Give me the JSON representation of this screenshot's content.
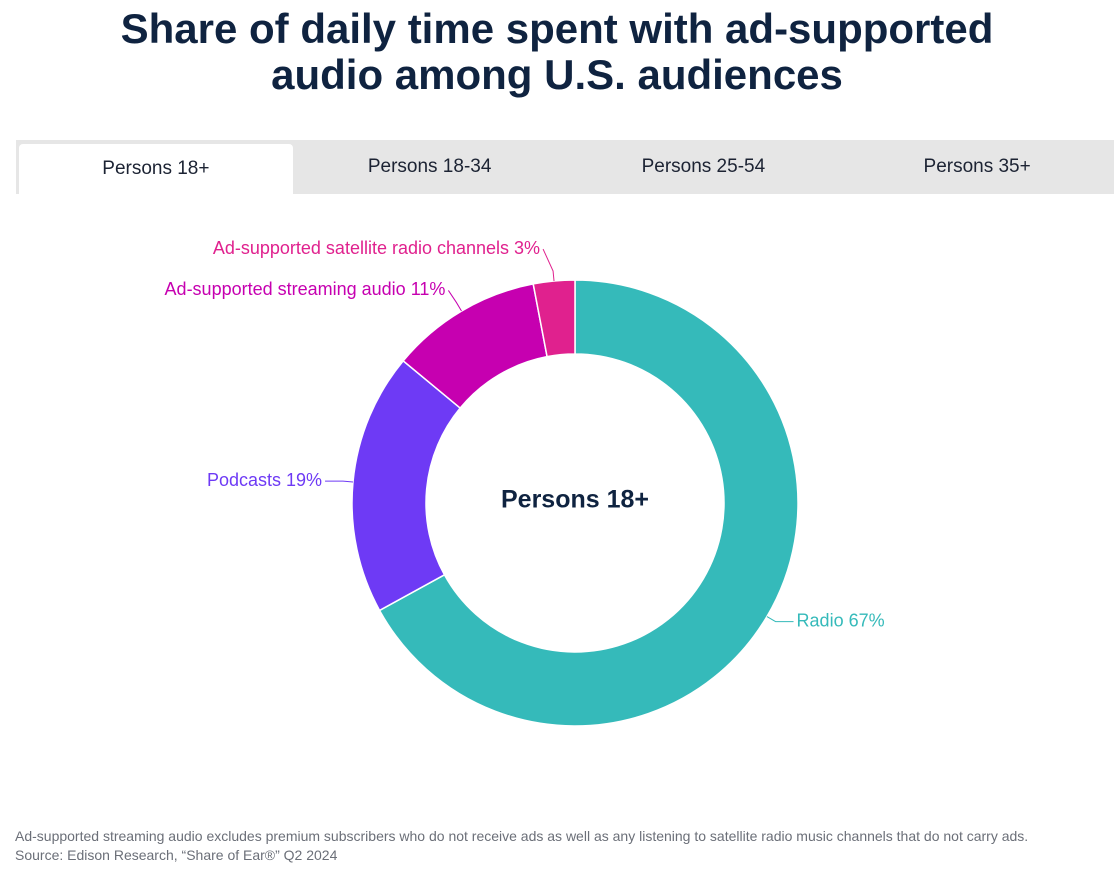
{
  "title": {
    "line1": "Share of daily time spent with ad-supported",
    "line2": "audio among U.S. audiences"
  },
  "tabs": [
    {
      "label": "Persons 18+",
      "active": true
    },
    {
      "label": "Persons 18-34",
      "active": false
    },
    {
      "label": "Persons 25-54",
      "active": false
    },
    {
      "label": "Persons 35+",
      "active": false
    }
  ],
  "chart_data": {
    "type": "pie",
    "variant": "donut",
    "center_label": "Persons 18+",
    "series": [
      {
        "name": "Radio",
        "value": 67,
        "label": "Radio 67%",
        "color": "#35baba"
      },
      {
        "name": "Podcasts",
        "value": 19,
        "label": "Podcasts 19%",
        "color": "#6e3af5"
      },
      {
        "name": "Ad-supported streaming audio",
        "value": 11,
        "label": "Ad-supported streaming audio 11%",
        "color": "#c600b0"
      },
      {
        "name": "Ad-supported satellite radio channels",
        "value": 3,
        "label": "Ad-supported satellite radio channels 3%",
        "color": "#e0218e"
      }
    ]
  },
  "footnote": {
    "note": "Ad-supported streaming audio excludes premium subscribers who do not receive ads as well as any listening to satellite radio music channels that do not carry ads.",
    "source": "Source: Edison Research, “Share of Ear®” Q2 2024"
  }
}
